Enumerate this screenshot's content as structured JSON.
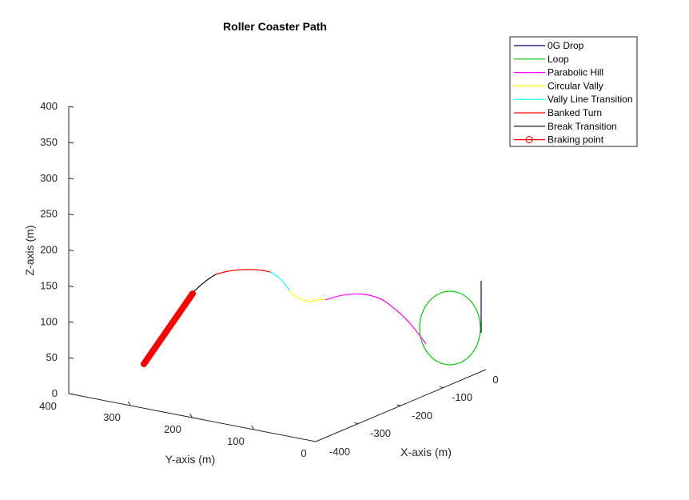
{
  "chart_data": {
    "type": "line",
    "title": "Roller Coaster Path",
    "xlabel": "X-axis (m)",
    "ylabel": "Y-axis (m)",
    "zlabel": "Z-axis (m)",
    "xlim": [
      -400,
      0
    ],
    "ylim": [
      0,
      400
    ],
    "zlim": [
      0,
      400
    ],
    "x_ticks": [
      "-400",
      "-300",
      "-200",
      "-100",
      "0"
    ],
    "y_ticks": [
      "400",
      "300",
      "200",
      "100",
      "0"
    ],
    "z_ticks": [
      "0",
      "50",
      "100",
      "150",
      "200",
      "250",
      "300",
      "350",
      "400"
    ],
    "grid": false,
    "legend_position": "top-right",
    "series": [
      {
        "name": "0G Drop",
        "color": "#00007f"
      },
      {
        "name": "Loop",
        "color": "#00cc00"
      },
      {
        "name": "Parabolic Hill",
        "color": "#ff00ff"
      },
      {
        "name": "Circular Vally",
        "color": "#ffff00"
      },
      {
        "name": "Vally Line Transition",
        "color": "#00ffff"
      },
      {
        "name": "Banked Turn",
        "color": "#ff0000"
      },
      {
        "name": "Break Transition",
        "color": "#000000"
      },
      {
        "name": "Braking point",
        "color": "#ff0000",
        "marker": "circle"
      }
    ]
  }
}
